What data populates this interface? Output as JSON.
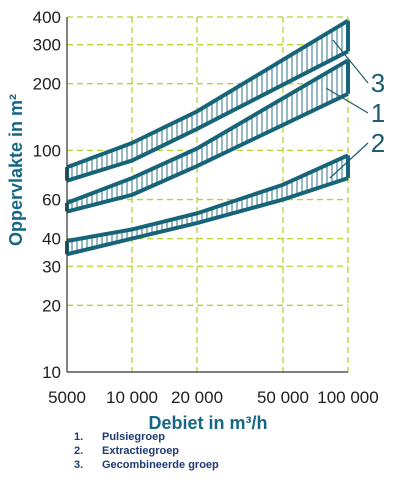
{
  "chart_data": {
    "type": "area",
    "xlabel": "Debiet in m³/h",
    "ylabel": "Oppervlakte in m²",
    "x_scale": "log",
    "y_scale": "log",
    "xlim": [
      5000,
      100000
    ],
    "ylim": [
      10,
      400
    ],
    "x_ticks": [
      5000,
      10000,
      20000,
      50000,
      100000
    ],
    "x_tick_labels": [
      "5000",
      "10 000",
      "20 000",
      "50 000",
      "100 000"
    ],
    "y_ticks": [
      10,
      20,
      30,
      40,
      60,
      100,
      200,
      300,
      400
    ],
    "y_tick_labels": [
      "10",
      "20",
      "30",
      "40",
      "60",
      "100",
      "200",
      "300",
      "400"
    ],
    "grid": true,
    "series": [
      {
        "label": "3",
        "x": [
          5000,
          10000,
          20000,
          100000
        ],
        "upper": [
          84,
          108,
          150,
          385
        ],
        "lower": [
          73,
          90,
          125,
          280
        ]
      },
      {
        "label": "1",
        "x": [
          5000,
          10000,
          20000,
          100000
        ],
        "upper": [
          58,
          75,
          102,
          255
        ],
        "lower": [
          53,
          63,
          85,
          180
        ]
      },
      {
        "label": "2",
        "x": [
          5000,
          10000,
          20000,
          50000,
          100000
        ],
        "upper": [
          39,
          44,
          52,
          70,
          95
        ],
        "lower": [
          34,
          40,
          47,
          60,
          75
        ]
      }
    ],
    "colors": {
      "band_stroke": "#176479",
      "grid": "#b5d335",
      "axis_title": "#166785",
      "tick": "#1e1e1e"
    }
  },
  "legend": [
    {
      "num": "1.",
      "text": "Pulsiegroep"
    },
    {
      "num": "2.",
      "text": "Extractiegroep"
    },
    {
      "num": "3.",
      "text": "Gecombineerde groep"
    }
  ]
}
